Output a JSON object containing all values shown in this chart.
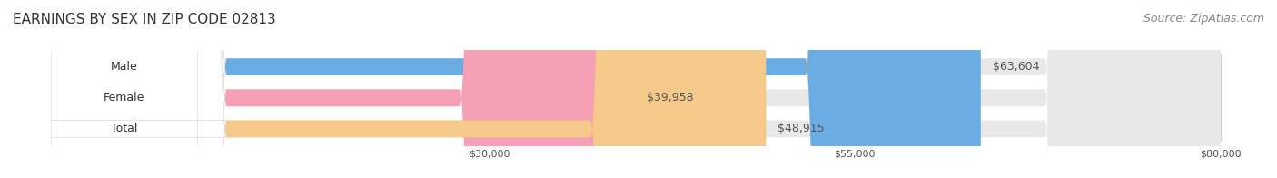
{
  "title": "EARNINGS BY SEX IN ZIP CODE 02813",
  "source": "Source: ZipAtlas.com",
  "categories": [
    "Male",
    "Female",
    "Total"
  ],
  "values": [
    63604,
    39958,
    48915
  ],
  "bar_colors": [
    "#6aade4",
    "#f5a0b5",
    "#f5c98a"
  ],
  "bar_bg_color": "#e8e8e8",
  "label_colors": [
    "#ffffff",
    "#555555",
    "#555555"
  ],
  "value_labels": [
    "$63,604",
    "$39,958",
    "$48,915"
  ],
  "x_min": 0,
  "x_max": 80000,
  "x_ticks": [
    30000,
    55000,
    80000
  ],
  "x_tick_labels": [
    "$30,000",
    "$55,000",
    "$80,000"
  ],
  "bg_color": "#ffffff",
  "title_fontsize": 11,
  "source_fontsize": 9,
  "bar_label_fontsize": 9,
  "value_label_fontsize": 9,
  "category_fontsize": 9
}
